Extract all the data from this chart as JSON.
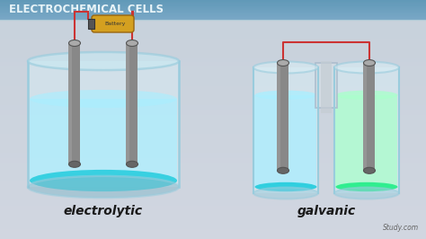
{
  "title": "ELECTROCHEMICAL CELLS",
  "title_fontsize": 8.5,
  "label_electrolytic": "electrolytic",
  "label_galvanic": "galvanic",
  "label_fontsize": 10,
  "bg_top": "#c8cdd2",
  "bg_bottom": "#b8bfc6",
  "header_color": "#6fa8c0",
  "header_text_color": "#e8f4f8",
  "text_color": "#1a1a1a",
  "liquid_blue_light": "#aaeeff",
  "liquid_blue_mid": "#66ddee",
  "liquid_blue_dark": "#22ccdd",
  "liquid_green_light": "#aaffcc",
  "liquid_green_mid": "#66ffaa",
  "liquid_green_dark": "#22ee88",
  "beaker_fill": "#d8eef5",
  "beaker_edge": "#99ccdd",
  "electrode_fill": "#888888",
  "electrode_edge": "#555555",
  "electrode_top": "#aaaaaa",
  "wire_color": "#cc3333",
  "salt_bridge_fill": "#d4dde4",
  "salt_bridge_edge": "#aabbcc",
  "battery_body": "#d4a020",
  "battery_stripe": "#cc8800",
  "battery_cap": "#888888",
  "battery_text_color": "#333333",
  "watermark": "Study.com",
  "watermark_color": "#666666"
}
